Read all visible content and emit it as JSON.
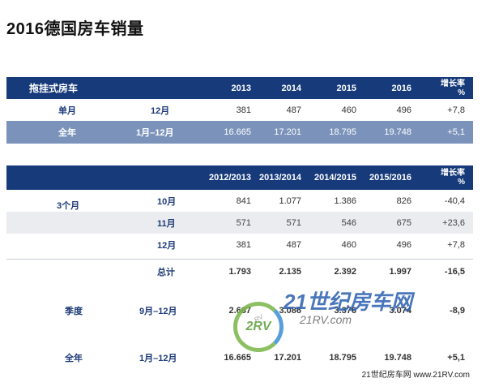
{
  "title": "2016德国房车销量",
  "table1": {
    "header": {
      "label": "拖挂式房车",
      "years": [
        "2013",
        "2014",
        "2015",
        "2016"
      ],
      "growth_line1": "增长率",
      "growth_line2": "%"
    },
    "rows": [
      {
        "label": "单月",
        "period": "12月",
        "values": [
          "381",
          "487",
          "460",
          "496"
        ],
        "growth": "+7,8"
      },
      {
        "label": "全年",
        "period": "1月–12月",
        "values": [
          "16.665",
          "17.201",
          "18.795",
          "19.748"
        ],
        "growth": "+5,1"
      }
    ]
  },
  "table2": {
    "header": {
      "years": [
        "2012/2013",
        "2013/2014",
        "2014/2015",
        "2015/2016"
      ],
      "growth_line1": "增长率",
      "growth_line2": "%"
    },
    "group_label": "3个月",
    "months": [
      {
        "period": "10月",
        "values": [
          "841",
          "1.077",
          "1.386",
          "826"
        ],
        "growth": "-40,4"
      },
      {
        "period": "11月",
        "values": [
          "571",
          "571",
          "546",
          "675"
        ],
        "growth": "+23,6"
      },
      {
        "period": "12月",
        "values": [
          "381",
          "487",
          "460",
          "496"
        ],
        "growth": "+7,8"
      }
    ],
    "total": {
      "label": "总计",
      "values": [
        "1.793",
        "2.135",
        "2.392",
        "1.997"
      ],
      "growth": "-16,5"
    },
    "quarter": {
      "label": "季度",
      "period": "9月–12月",
      "values": [
        "2.687",
        "3.086",
        "3.376",
        "3.074"
      ],
      "growth": "-8,9"
    },
    "year": {
      "label": "全年",
      "period": "1月–12月",
      "values": [
        "16.665",
        "17.201",
        "18.795",
        "19.748"
      ],
      "growth": "+5,1"
    }
  },
  "watermark": {
    "ring_text": "2RV",
    "brand": "21世纪房车网",
    "url": "21RV.com",
    "small": "RV"
  },
  "footer": "21世纪房车网 www.21RV.com"
}
